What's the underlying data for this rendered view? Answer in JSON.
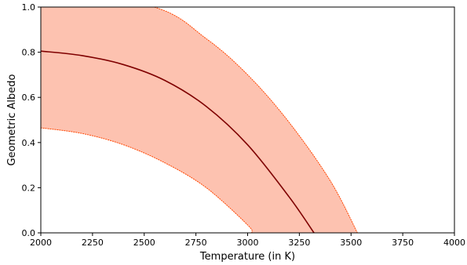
{
  "chart_data": {
    "type": "area",
    "title": "",
    "xlabel": "Temperature (in K)",
    "ylabel": "Geometric Albedo",
    "xlim": [
      2000,
      4000
    ],
    "ylim": [
      0.0,
      1.0
    ],
    "x_ticks": [
      2000,
      2250,
      2500,
      2750,
      3000,
      3250,
      3500,
      3750,
      4000
    ],
    "y_ticks": [
      0.0,
      0.2,
      0.4,
      0.6,
      0.8,
      1.0
    ],
    "x_tick_labels": [
      "2000",
      "2250",
      "2500",
      "2750",
      "3000",
      "3250",
      "3500",
      "3750",
      "4000"
    ],
    "y_tick_labels": [
      "0.0",
      "0.2",
      "0.4",
      "0.6",
      "0.8",
      "1.0"
    ],
    "grid": false,
    "legend": "none",
    "series": [
      {
        "role": "central",
        "style": "solid",
        "color": "#7f0000",
        "x": [
          2000,
          2200,
          2400,
          2600,
          2800,
          3000,
          3200,
          3321
        ],
        "y": [
          0.805,
          0.785,
          0.745,
          0.675,
          0.56,
          0.39,
          0.16,
          0.0
        ]
      },
      {
        "role": "upper-bound",
        "style": "dotted",
        "color": "#ff4500",
        "x": [
          2000,
          2548,
          2800,
          3000,
          3200,
          3400,
          3531
        ],
        "y": [
          1.08,
          1.0,
          0.86,
          0.7,
          0.49,
          0.23,
          0.0
        ]
      },
      {
        "role": "lower-bound",
        "style": "dotted",
        "color": "#ff4500",
        "x": [
          2000,
          2200,
          2400,
          2600,
          2800,
          3000,
          3020
        ],
        "y": [
          0.465,
          0.44,
          0.39,
          0.31,
          0.2,
          0.035,
          0.0
        ]
      }
    ],
    "band_fill": "#fdc2b0"
  }
}
